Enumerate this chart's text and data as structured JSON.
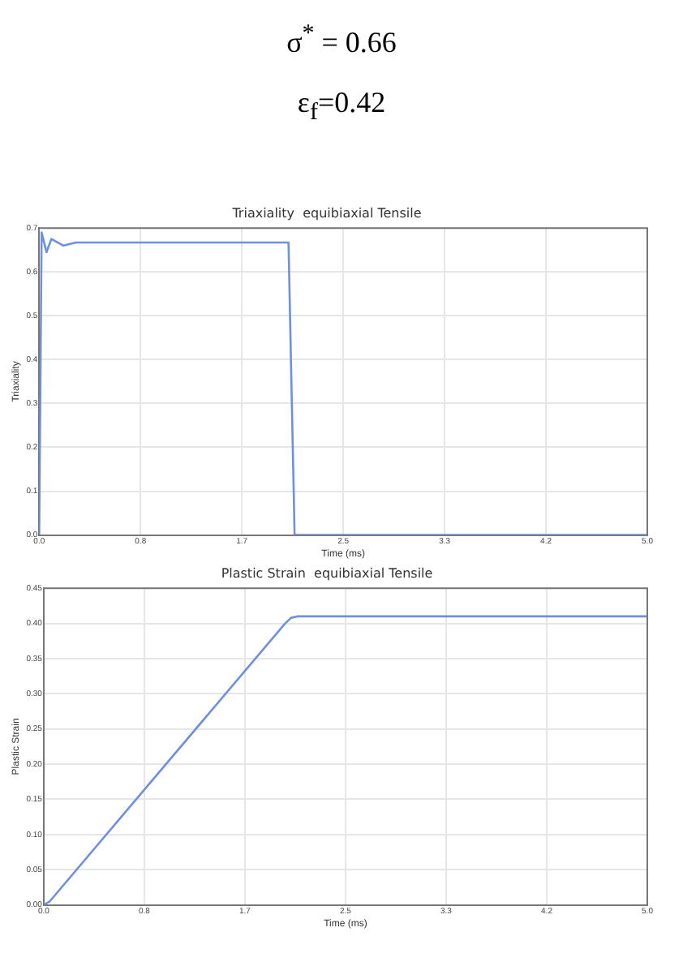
{
  "chart_data": [
    {
      "type": "line",
      "title": "Triaxiality  equibiaxial Tensile",
      "xlabel": "Time (ms)",
      "ylabel": "Triaxiality",
      "annotations": [
        "σ$^{*}$ = 0.66",
        "ε$_{f}$=0.42"
      ],
      "x": [
        0,
        0.02,
        0.06,
        0.1,
        0.2,
        0.3,
        2.05,
        2.1,
        5.0
      ],
      "series": [
        {
          "color": "#6f8fe0",
          "values": [
            0,
            0.69,
            0.645,
            0.675,
            0.66,
            0.667,
            0.667,
            0,
            0
          ]
        }
      ],
      "xlim": [
        0,
        5
      ],
      "xticks": [
        {
          "value": 0,
          "label": "0.0"
        },
        {
          "value": 0.8333,
          "label": "0.8"
        },
        {
          "value": 1.6667,
          "label": "1.7"
        },
        2.5,
        {
          "value": 3.3333,
          "label": "3.3"
        },
        {
          "value": 4.1667,
          "label": "4.2"
        },
        {
          "value": 5,
          "label": "5.0"
        }
      ],
      "ylim": [
        0,
        0.7
      ],
      "yticks": [
        {
          "value": 0,
          "label": "0.0"
        },
        0.1,
        0.2,
        0.3,
        0.4,
        0.5,
        0.6,
        0.7
      ],
      "grid": true,
      "marker": "none",
      "legend": false
    },
    {
      "type": "line",
      "title": "Plastic Strain  equibiaxial Tensile",
      "xlabel": "Time (ms)",
      "ylabel": "Plastic Strain",
      "x": [
        0,
        0.05,
        2.0,
        2.05,
        2.1,
        5.0
      ],
      "series": [
        {
          "color": "#6f8fe0",
          "values": [
            0,
            0.005,
            0.4,
            0.408,
            0.41,
            0.41
          ]
        }
      ],
      "xlim": [
        0,
        5
      ],
      "xticks": [
        {
          "value": 0,
          "label": "0.0"
        },
        {
          "value": 0.8333,
          "label": "0.8"
        },
        {
          "value": 1.6667,
          "label": "1.7"
        },
        2.5,
        {
          "value": 3.3333,
          "label": "3.3"
        },
        {
          "value": 4.1667,
          "label": "4.2"
        },
        {
          "value": 5,
          "label": "5.0"
        }
      ],
      "ylim": [
        0,
        0.45
      ],
      "yticks": [
        {
          "value": 0,
          "label": "0.00"
        },
        0.05,
        {
          "value": 0.1,
          "label": "0.10"
        },
        0.15,
        {
          "value": 0.2,
          "label": "0.20"
        },
        0.25,
        {
          "value": 0.3,
          "label": "0.30"
        },
        0.35,
        {
          "value": 0.4,
          "label": "0.40"
        },
        0.45
      ],
      "grid": true,
      "marker": "none",
      "legend": false
    }
  ]
}
